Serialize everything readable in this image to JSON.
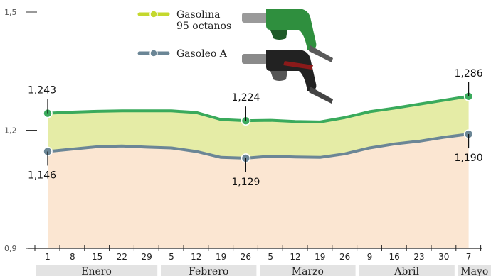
{
  "chart_data": {
    "type": "area",
    "title": "",
    "xlabel": "",
    "ylabel": "",
    "ylim": [
      0.9,
      1.5
    ],
    "yticks": [
      "1,5",
      "1,2",
      "0,9"
    ],
    "x_ticks": [
      "1",
      "8",
      "15",
      "22",
      "29",
      "5",
      "12",
      "19",
      "26",
      "5",
      "12",
      "19",
      "26",
      "9",
      "16",
      "23",
      "30",
      "7"
    ],
    "months": [
      "Enero",
      "Febrero",
      "Marzo",
      "Abril",
      "Mayo"
    ],
    "legend": [
      "Gasolina\n95 octanos",
      "Gasoleo A"
    ],
    "legend_labels": {
      "gasolina_line1": "Gasolina",
      "gasolina_line2": "95 octanos",
      "gasoleo": "Gasoleo A"
    },
    "series": [
      {
        "name": "Gasolina 95 octanos",
        "color": "#3aaa5c",
        "values": [
          1.243,
          1.246,
          1.248,
          1.249,
          1.249,
          1.249,
          1.245,
          1.227,
          1.224,
          1.225,
          1.222,
          1.221,
          1.232,
          1.247,
          1.256,
          1.266,
          1.276,
          1.286
        ]
      },
      {
        "name": "Gasoleo A",
        "color": "#6b8696",
        "values": [
          1.146,
          1.152,
          1.158,
          1.16,
          1.157,
          1.155,
          1.146,
          1.131,
          1.129,
          1.134,
          1.132,
          1.131,
          1.14,
          1.155,
          1.165,
          1.172,
          1.182,
          1.19
        ]
      }
    ],
    "point_labels": [
      {
        "series": 0,
        "index": 0,
        "text": "1,243"
      },
      {
        "series": 0,
        "index": 8,
        "text": "1,224"
      },
      {
        "series": 0,
        "index": 17,
        "text": "1,286"
      },
      {
        "series": 1,
        "index": 0,
        "text": "1,146"
      },
      {
        "series": 1,
        "index": 8,
        "text": "1,129"
      },
      {
        "series": 1,
        "index": 17,
        "text": "1,190"
      }
    ],
    "colors": {
      "fill_between": "#e5eca6",
      "fill_below": "#fbe6d2",
      "month_band": "#e3e3e3"
    },
    "grid": false,
    "legend_position": "top-center"
  }
}
